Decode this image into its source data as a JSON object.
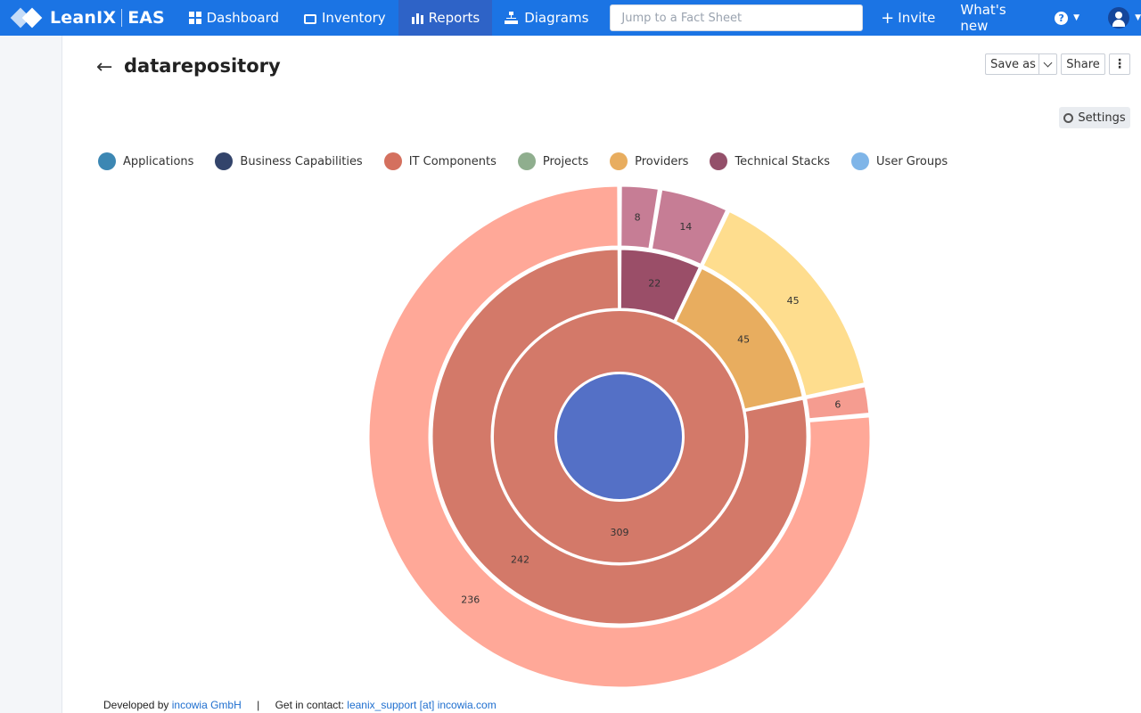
{
  "app": {
    "brand": "LeanIX",
    "product": "EAS"
  },
  "nav": {
    "dashboard": "Dashboard",
    "inventory": "Inventory",
    "reports": "Reports",
    "diagrams": "Diagrams",
    "search_placeholder": "Jump to a Fact Sheet",
    "invite": "Invite",
    "whats_new": "What's new",
    "help_glyph": "?"
  },
  "page": {
    "title": "datarepository",
    "save_as": "Save as",
    "share": "Share",
    "more": "⋮",
    "settings": "Settings"
  },
  "legend": [
    {
      "label": "Applications",
      "color": "#3c87b3"
    },
    {
      "label": "Business Capabilities",
      "color": "#33446b"
    },
    {
      "label": "IT Components",
      "color": "#d4705e"
    },
    {
      "label": "Projects",
      "color": "#8fae8e"
    },
    {
      "label": "Providers",
      "color": "#e8ad5f"
    },
    {
      "label": "Technical Stacks",
      "color": "#94506a"
    },
    {
      "label": "User Groups",
      "color": "#7fb5e8"
    }
  ],
  "chart_data": {
    "type": "sunburst",
    "center_color": "#5470c6",
    "rings": [
      {
        "level": 1,
        "segments": [
          {
            "value": 309,
            "label": "309",
            "color": "#d37969"
          }
        ]
      },
      {
        "level": 2,
        "segments": [
          {
            "value": 242,
            "label": "242",
            "color": "#d37969"
          },
          {
            "value": 45,
            "label": "45",
            "color": "#e8ad5f"
          },
          {
            "value": 22,
            "label": "22",
            "color": "#9a4e68"
          }
        ]
      },
      {
        "level": 3,
        "segments": [
          {
            "value": 236,
            "label": "236",
            "color": "#ffa898"
          },
          {
            "value": 6,
            "label": "6",
            "color": "#f59c90"
          },
          {
            "value": 45,
            "label": "45",
            "color": "#fedd8e"
          },
          {
            "value": 14,
            "label": "14",
            "color": "#c67d95"
          },
          {
            "value": 8,
            "label": "8",
            "color": "#c67d95"
          }
        ]
      }
    ]
  },
  "footer": {
    "developed_by": "Developed by",
    "company": "incowia GmbH",
    "separator": "|",
    "contact_label": "Get in contact:",
    "contact": "leanix_support [at] incowia.com"
  }
}
